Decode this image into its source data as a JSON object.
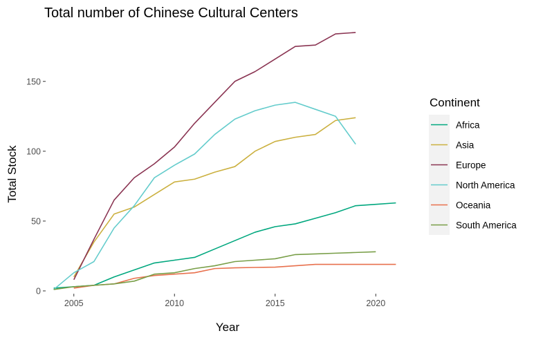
{
  "chart_data": {
    "type": "line",
    "title": "Total number of Chinese Cultural Centers",
    "xlabel": "Year",
    "ylabel": "Total Stock",
    "xlim": [
      2003.6,
      2021.4
    ],
    "ylim": [
      -2,
      186
    ],
    "x_ticks": [
      2005,
      2010,
      2015,
      2020
    ],
    "y_ticks": [
      0,
      50,
      100,
      150
    ],
    "x_tick_labels": [
      "2005",
      "2010",
      "2015",
      "2020"
    ],
    "y_tick_labels": [
      "0",
      "50",
      "100",
      "150"
    ],
    "grid": false,
    "legend_title": "Continent",
    "legend_position": "right",
    "series": [
      {
        "name": "Africa",
        "color": "#00A77E",
        "x": [
          2004,
          2005,
          2006,
          2007,
          2008,
          2009,
          2010,
          2011,
          2012,
          2013,
          2014,
          2015,
          2016,
          2017,
          2018,
          2019,
          2020,
          2021
        ],
        "y": [
          2,
          3,
          4,
          10,
          15,
          20,
          22,
          24,
          30,
          36,
          42,
          46,
          48,
          52,
          56,
          61,
          62,
          63
        ]
      },
      {
        "name": "Asia",
        "color": "#CBB03F",
        "x": [
          2005,
          2006,
          2007,
          2008,
          2009,
          2010,
          2011,
          2012,
          2013,
          2014,
          2015,
          2016,
          2017,
          2018,
          2019
        ],
        "y": [
          10,
          35,
          55,
          60,
          69,
          78,
          80,
          85,
          89,
          100,
          107,
          110,
          112,
          122,
          124
        ]
      },
      {
        "name": "Europe",
        "color": "#8A3452",
        "x": [
          2005,
          2006,
          2007,
          2008,
          2009,
          2010,
          2011,
          2012,
          2013,
          2014,
          2015,
          2016,
          2017,
          2018,
          2019
        ],
        "y": [
          8,
          37,
          65,
          81,
          91,
          103,
          120,
          135,
          150,
          157,
          166,
          175,
          176,
          184,
          185
        ]
      },
      {
        "name": "North America",
        "color": "#64CCCC",
        "x": [
          2004,
          2005,
          2006,
          2007,
          2008,
          2009,
          2010,
          2011,
          2012,
          2013,
          2014,
          2015,
          2016,
          2017,
          2018,
          2019
        ],
        "y": [
          1,
          13,
          21,
          45,
          61,
          81,
          90,
          98,
          112,
          123,
          129,
          133,
          135,
          130,
          125,
          105
        ]
      },
      {
        "name": "Oceania",
        "color": "#E8704D",
        "x": [
          2005,
          2006,
          2007,
          2008,
          2009,
          2010,
          2011,
          2012,
          2013,
          2014,
          2015,
          2016,
          2017,
          2018,
          2019,
          2020,
          2021
        ],
        "y": [
          2,
          4,
          5,
          9,
          11,
          12,
          13,
          16,
          16.5,
          16.8,
          17,
          18,
          19,
          19,
          19,
          19,
          19
        ]
      },
      {
        "name": "South America",
        "color": "#789E47",
        "x": [
          2004,
          2005,
          2006,
          2007,
          2008,
          2009,
          2010,
          2011,
          2012,
          2013,
          2014,
          2015,
          2016,
          2017,
          2018,
          2019,
          2020
        ],
        "y": [
          1,
          3,
          4,
          5,
          7,
          12,
          13,
          16,
          18,
          21,
          22,
          23,
          26,
          26.5,
          27,
          27.5,
          28
        ]
      }
    ]
  }
}
